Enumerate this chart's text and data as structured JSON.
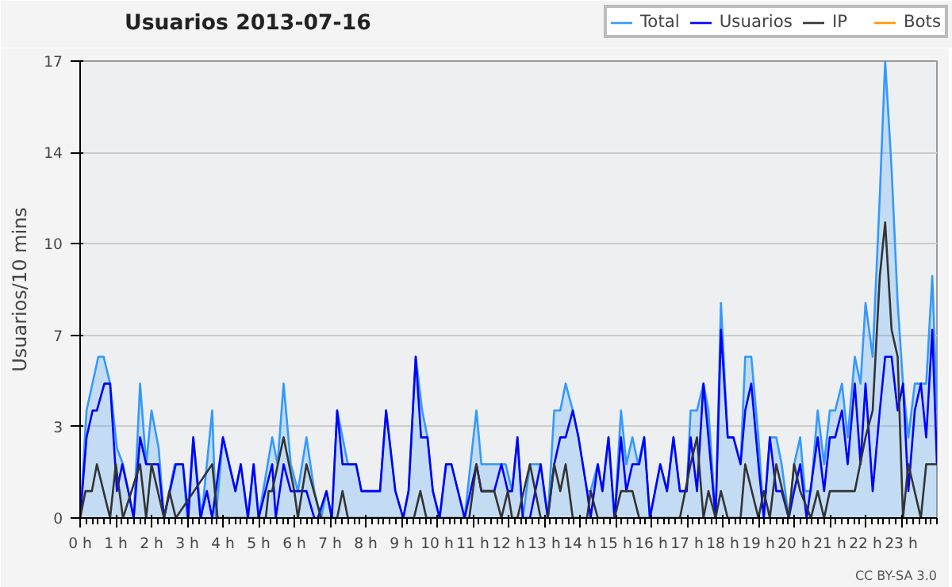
{
  "chart_data": {
    "type": "line",
    "title": "Usuarios  2013-07-16",
    "ylabel": "Usuarios/10 mins",
    "xlim": [
      0,
      24
    ],
    "ylim": [
      0,
      17
    ],
    "xticks": [
      {
        "value": 0,
        "label": "0 h"
      },
      {
        "value": 1,
        "label": "1 h"
      },
      {
        "value": 2,
        "label": "2 h"
      },
      {
        "value": 3,
        "label": "3 h"
      },
      {
        "value": 4,
        "label": "4 h"
      },
      {
        "value": 5,
        "label": "5 h"
      },
      {
        "value": 6,
        "label": "6 h"
      },
      {
        "value": 7,
        "label": "7 h"
      },
      {
        "value": 8,
        "label": "8 h"
      },
      {
        "value": 9,
        "label": "9 h"
      },
      {
        "value": 10,
        "label": "10 h"
      },
      {
        "value": 11,
        "label": "11 h"
      },
      {
        "value": 12,
        "label": "12 h"
      },
      {
        "value": 13,
        "label": "13 h"
      },
      {
        "value": 14,
        "label": "14 h"
      },
      {
        "value": 15,
        "label": "15 h"
      },
      {
        "value": 16,
        "label": "16 h"
      },
      {
        "value": 17,
        "label": "17 h"
      },
      {
        "value": 18,
        "label": "18 h"
      },
      {
        "value": 19,
        "label": "19 h"
      },
      {
        "value": 20,
        "label": "20 h"
      },
      {
        "value": 21,
        "label": "21 h"
      },
      {
        "value": 22,
        "label": "22 h"
      },
      {
        "value": 23,
        "label": "23 h"
      }
    ],
    "yticks": [
      0,
      {
        "value": 3.4,
        "label": "3"
      },
      {
        "value": 6.8,
        "label": "7"
      },
      {
        "value": 10.2,
        "label": "10"
      },
      {
        "value": 13.6,
        "label": "14"
      },
      17
    ],
    "grid": "y",
    "legend": "top right",
    "marker": "none",
    "annotations": [
      "CC BY-SA 3.0"
    ],
    "series": [
      {
        "name": "Total",
        "type": "area",
        "color": "#3399ff",
        "x": [
          0,
          0.18,
          0.51,
          0.66,
          0.84,
          1.03,
          1.2,
          1.5,
          1.68,
          1.85,
          2.0,
          2.2,
          2.35,
          2.65,
          2.88,
          3.0,
          3.17,
          3.4,
          3.7,
          3.8,
          4.0,
          4.35,
          4.5,
          4.7,
          4.86,
          5.0,
          5.38,
          5.53,
          5.7,
          5.9,
          6.1,
          6.34,
          6.56,
          6.75,
          6.9,
          7.05,
          7.2,
          7.5,
          7.73,
          7.88,
          8.4,
          8.57,
          8.83,
          9.05,
          9.2,
          9.4,
          9.58,
          9.73,
          9.88,
          10.07,
          10.25,
          10.4,
          10.77,
          11.1,
          11.24,
          11.92,
          12.1,
          12.25,
          12.4,
          12.6,
          12.9,
          13.1,
          13.28,
          13.45,
          13.6,
          13.8,
          13.96,
          14.2,
          14.3,
          14.5,
          14.63,
          14.8,
          14.97,
          15.15,
          15.3,
          15.47,
          15.63,
          15.8,
          15.96,
          16.25,
          16.44,
          16.62,
          16.8,
          16.99,
          17.1,
          17.28,
          17.46,
          17.6,
          17.8,
          17.95,
          18.14,
          18.3,
          18.5,
          18.63,
          18.8,
          19.0,
          19.15,
          19.32,
          19.5,
          19.65,
          19.85,
          20.0,
          20.17,
          20.3,
          20.47,
          20.66,
          20.84,
          21.0,
          21.15,
          21.34,
          21.5,
          21.7,
          21.86,
          22.0,
          22.2,
          22.4,
          22.55,
          22.73,
          22.9,
          23.05,
          23.2,
          23.38,
          23.55,
          23.7,
          23.87,
          24.0
        ],
        "values": [
          0,
          4,
          6,
          6,
          5,
          2.6,
          2,
          0,
          5,
          2,
          4,
          2.6,
          0,
          2,
          2,
          0,
          3,
          0,
          4,
          0,
          3,
          1,
          2,
          0,
          2,
          0,
          3,
          2,
          5,
          2,
          1,
          3,
          1,
          0,
          1,
          0,
          4,
          2,
          2,
          1,
          1,
          4,
          1,
          0,
          1,
          6,
          4,
          3,
          1,
          0,
          2,
          2,
          0,
          4,
          2,
          2,
          1,
          3,
          0,
          2,
          2,
          0,
          4,
          4,
          5,
          4,
          3,
          1,
          1,
          2,
          1,
          3,
          0,
          4,
          2,
          3,
          2,
          3,
          0,
          2,
          1,
          3,
          1,
          1,
          4,
          4,
          5,
          4,
          0,
          8,
          3,
          3,
          2,
          6,
          6,
          3,
          0,
          3,
          3,
          2,
          0,
          2,
          3,
          1,
          1,
          4,
          2,
          4,
          4,
          5,
          3,
          6,
          5,
          8,
          6,
          12,
          17,
          13,
          8,
          5,
          3,
          5,
          5,
          5,
          9,
          4
        ]
      },
      {
        "name": "Usuarios",
        "color": "#0000ff",
        "x": [
          0,
          0.18,
          0.35,
          0.47,
          0.68,
          0.84,
          1.03,
          1.18,
          1.35,
          1.5,
          1.68,
          1.85,
          2.19,
          2.35,
          2.68,
          2.88,
          3.03,
          3.17,
          3.37,
          3.55,
          3.7,
          4.0,
          4.35,
          4.5,
          4.7,
          4.86,
          5.0,
          5.38,
          5.48,
          5.7,
          5.9,
          6.34,
          6.56,
          6.66,
          6.9,
          7.05,
          7.2,
          7.35,
          7.73,
          7.88,
          8.4,
          8.57,
          8.83,
          9.05,
          9.2,
          9.4,
          9.55,
          9.73,
          9.88,
          10.07,
          10.25,
          10.4,
          10.77,
          11.1,
          11.24,
          11.6,
          11.8,
          11.98,
          12.1,
          12.25,
          12.4,
          12.6,
          12.9,
          13.1,
          13.28,
          13.45,
          13.6,
          13.8,
          13.96,
          14.2,
          14.3,
          14.5,
          14.63,
          14.8,
          14.97,
          15.15,
          15.3,
          15.47,
          15.66,
          15.8,
          15.96,
          16.25,
          16.44,
          16.62,
          16.8,
          16.99,
          17.1,
          17.28,
          17.46,
          17.6,
          17.8,
          17.95,
          18.14,
          18.3,
          18.5,
          18.63,
          18.8,
          19.0,
          19.15,
          19.32,
          19.5,
          19.65,
          19.85,
          20.0,
          20.17,
          20.35,
          20.66,
          20.84,
          21.0,
          21.15,
          21.34,
          21.5,
          21.7,
          21.86,
          22.0,
          22.2,
          22.4,
          22.55,
          22.73,
          22.9,
          23.05,
          23.2,
          23.38,
          23.55,
          23.7,
          23.87,
          24.0
        ],
        "values": [
          0,
          3,
          4,
          4,
          5,
          5,
          1,
          2,
          1,
          0,
          3,
          2,
          2,
          0,
          2,
          2,
          0,
          3,
          0,
          1,
          0,
          3,
          1,
          2,
          0,
          2,
          0,
          2,
          0,
          2,
          1,
          1,
          0,
          0,
          1,
          0,
          4,
          2,
          2,
          1,
          1,
          4,
          1,
          0,
          1,
          6,
          3,
          3,
          1,
          0,
          2,
          2,
          0,
          2,
          1,
          1,
          2,
          1,
          1,
          3,
          0,
          0,
          2,
          0,
          2,
          3,
          3,
          4,
          3,
          1,
          0,
          2,
          1,
          3,
          0,
          3,
          1,
          2,
          2,
          3,
          0,
          2,
          1,
          3,
          1,
          1,
          3,
          1,
          5,
          3,
          0,
          7,
          3,
          3,
          2,
          4,
          5,
          2,
          0,
          3,
          1,
          1,
          0,
          1,
          2,
          0,
          3,
          1,
          3,
          3,
          4,
          2,
          5,
          2,
          5,
          1,
          4,
          6,
          6,
          4,
          5,
          1,
          4,
          5,
          3,
          7,
          2
        ]
      },
      {
        "name": "IP",
        "color": "#333333",
        "x": [
          0,
          0.15,
          0.33,
          0.47,
          0.84,
          1.0,
          1.2,
          1.68,
          1.85,
          2.0,
          2.35,
          2.5,
          2.68,
          3.7,
          3.85,
          5.2,
          5.28,
          5.38,
          5.7,
          6.0,
          6.1,
          6.34,
          6.75,
          7.2,
          7.35,
          7.5,
          9.35,
          9.53,
          9.7,
          10.9,
          11.1,
          11.24,
          11.6,
          11.8,
          11.98,
          12.1,
          12.25,
          12.6,
          12.9,
          13.1,
          13.28,
          13.45,
          13.6,
          13.8,
          14.2,
          14.3,
          14.5,
          14.97,
          15.15,
          15.47,
          15.66,
          16.8,
          17.1,
          17.28,
          17.46,
          17.6,
          17.8,
          17.95,
          18.14,
          18.5,
          18.63,
          19.0,
          19.15,
          19.32,
          19.5,
          19.85,
          20.0,
          20.17,
          20.47,
          20.66,
          20.84,
          21.0,
          21.7,
          22.0,
          22.2,
          22.4,
          22.55,
          22.73,
          22.9,
          23.05,
          23.2,
          23.55,
          23.7,
          24.0
        ],
        "values": [
          0,
          1,
          1,
          2,
          0,
          2,
          0,
          2,
          0,
          2,
          0,
          1,
          0,
          2,
          0,
          0,
          1,
          1,
          3,
          1,
          0,
          2,
          0,
          0,
          1,
          0,
          0,
          1,
          0,
          0,
          2,
          1,
          1,
          0,
          1,
          0,
          0,
          2,
          0,
          0,
          2,
          1,
          2,
          0,
          0,
          1,
          0,
          0,
          1,
          1,
          0,
          0,
          2,
          3,
          0,
          1,
          0,
          1,
          0,
          0,
          2,
          0,
          1,
          0,
          2,
          0,
          2,
          1,
          0,
          1,
          0,
          1,
          1,
          3,
          4,
          9,
          11,
          7,
          6,
          0,
          2,
          0,
          2,
          2
        ]
      },
      {
        "name": "Bots",
        "color": "#ff9900"
      }
    ]
  }
}
